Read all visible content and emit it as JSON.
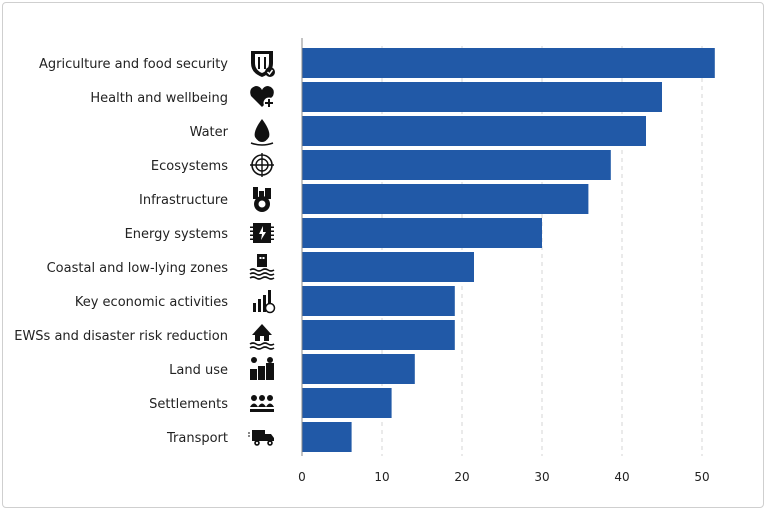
{
  "chart_data": {
    "type": "bar",
    "orientation": "horizontal",
    "categories": [
      "Agriculture and food security",
      "Health and wellbeing",
      "Water",
      "Ecosystems",
      "Infrastructure",
      "Energy systems",
      "Coastal and low-lying zones",
      "Key economic activities",
      "EWSs and disaster risk reduction",
      "Land use",
      "Settlements",
      "Transport"
    ],
    "icons": [
      "shield-fork-knife-icon",
      "heart-plus-icon",
      "water-drop-icon",
      "globe-target-icon",
      "factory-gear-icon",
      "energy-chip-icon",
      "building-waves-icon",
      "bar-chart-coin-icon",
      "house-flood-icon",
      "sun-fields-icon",
      "people-group-icon",
      "truck-icon"
    ],
    "values": [
      51.6,
      45.0,
      43.0,
      38.6,
      35.8,
      30.0,
      21.5,
      19.1,
      19.1,
      14.1,
      11.2,
      6.2
    ],
    "xlim": [
      0,
      55
    ],
    "xticks": [
      "0",
      "10",
      "20",
      "30",
      "40",
      "50"
    ],
    "xlabel": "",
    "ylabel": "",
    "title": "",
    "grid": "vertical-dashed",
    "legend": "none",
    "bar_color": "#2159a7"
  }
}
